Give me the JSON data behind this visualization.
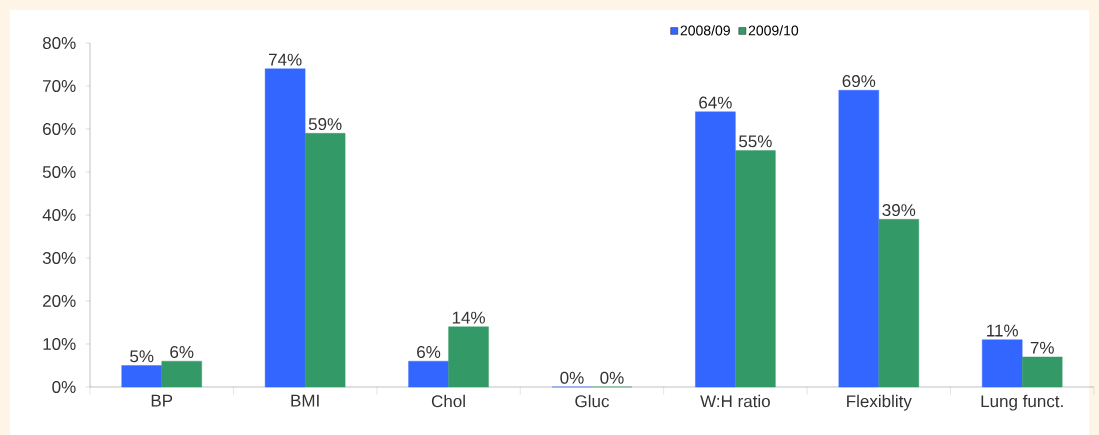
{
  "chart_data": {
    "type": "bar",
    "categories": [
      "BP",
      "BMI",
      "Chol",
      "Gluc",
      "W:H ratio",
      "Flexiblity",
      "Lung funct."
    ],
    "series": [
      {
        "name": "2008/09",
        "color": "#3366ff",
        "values": [
          5,
          74,
          6,
          0,
          64,
          69,
          11
        ],
        "value_labels": [
          "5%",
          "74%",
          "6%",
          "0%",
          "64%",
          "69%",
          "11%"
        ]
      },
      {
        "name": "2009/10",
        "color": "#339966",
        "values": [
          6,
          59,
          14,
          0,
          55,
          39,
          7
        ],
        "value_labels": [
          "6%",
          "59%",
          "14%",
          "0%",
          "55%",
          "39%",
          "7%"
        ]
      }
    ],
    "ylim": [
      0,
      80
    ],
    "yticks": [
      {
        "value": 0,
        "label": "0%"
      },
      {
        "value": 10,
        "label": "10%"
      },
      {
        "value": 20,
        "label": "20%"
      },
      {
        "value": 30,
        "label": "30%"
      },
      {
        "value": 40,
        "label": "40%"
      },
      {
        "value": 50,
        "label": "50%"
      },
      {
        "value": 60,
        "label": "60%"
      },
      {
        "value": 70,
        "label": "70%"
      },
      {
        "value": 80,
        "label": "80%"
      }
    ],
    "legend": "top"
  }
}
